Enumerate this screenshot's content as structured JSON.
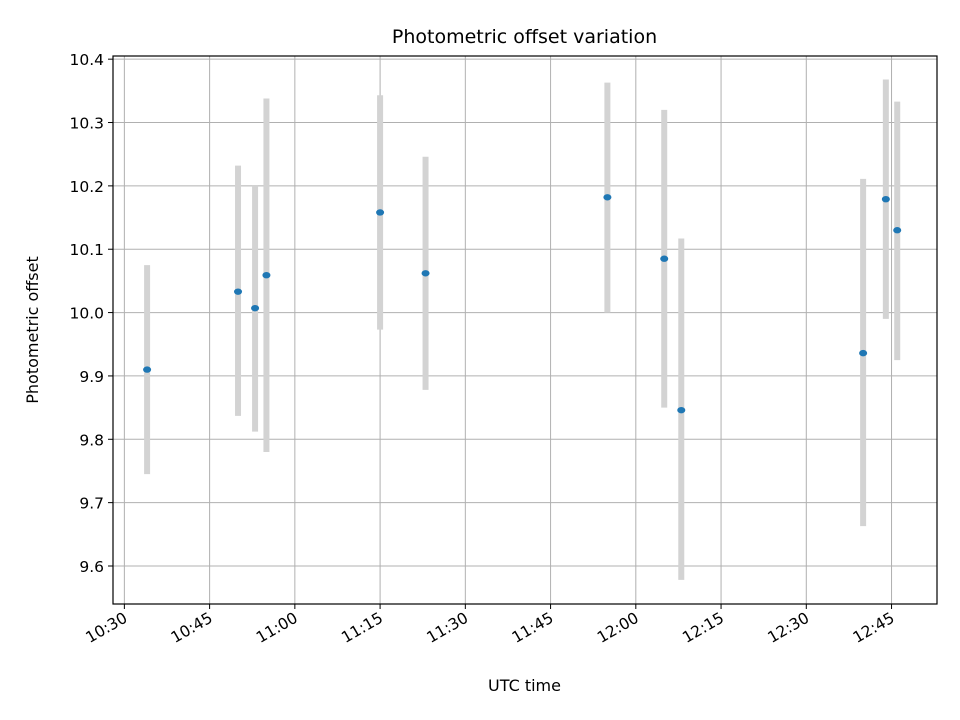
{
  "chart_data": {
    "type": "scatter",
    "title": "Photometric offset variation",
    "xlabel": "UTC time",
    "ylabel": "Photometric offset",
    "xlim": [
      "10:28",
      "12:53"
    ],
    "ylim": [
      9.54,
      10.405
    ],
    "grid": true,
    "x_ticks": [
      "10:30",
      "10:45",
      "11:00",
      "11:15",
      "11:30",
      "11:45",
      "12:00",
      "12:15",
      "12:30",
      "12:45"
    ],
    "y_ticks": [
      9.6,
      9.7,
      9.8,
      9.9,
      10.0,
      10.1,
      10.2,
      10.3,
      10.4
    ],
    "y_tick_labels": [
      "9.6",
      "9.7",
      "9.8",
      "9.9",
      "10.0",
      "10.1",
      "10.2",
      "10.3",
      "10.4"
    ],
    "points": [
      {
        "x": "10:34",
        "y": 9.91,
        "ylow": 9.745,
        "yhigh": 10.075
      },
      {
        "x": "10:50",
        "y": 10.033,
        "ylow": 9.837,
        "yhigh": 10.232
      },
      {
        "x": "10:53",
        "y": 10.007,
        "ylow": 9.812,
        "yhigh": 10.2
      },
      {
        "x": "10:55",
        "y": 10.059,
        "ylow": 9.78,
        "yhigh": 10.338
      },
      {
        "x": "11:15",
        "y": 10.158,
        "ylow": 9.973,
        "yhigh": 10.343
      },
      {
        "x": "11:23",
        "y": 10.062,
        "ylow": 9.878,
        "yhigh": 10.246
      },
      {
        "x": "11:55",
        "y": 10.182,
        "ylow": 10.0,
        "yhigh": 10.363
      },
      {
        "x": "12:05",
        "y": 10.085,
        "ylow": 9.85,
        "yhigh": 10.32
      },
      {
        "x": "12:08",
        "y": 9.846,
        "ylow": 9.578,
        "yhigh": 10.117
      },
      {
        "x": "12:40",
        "y": 9.936,
        "ylow": 9.663,
        "yhigh": 10.211
      },
      {
        "x": "12:44",
        "y": 10.179,
        "ylow": 9.99,
        "yhigh": 10.368
      },
      {
        "x": "12:46",
        "y": 10.13,
        "ylow": 9.925,
        "yhigh": 10.333
      }
    ],
    "point_color": "#1f77b4",
    "errorbar_color": "#d3d3d3"
  }
}
